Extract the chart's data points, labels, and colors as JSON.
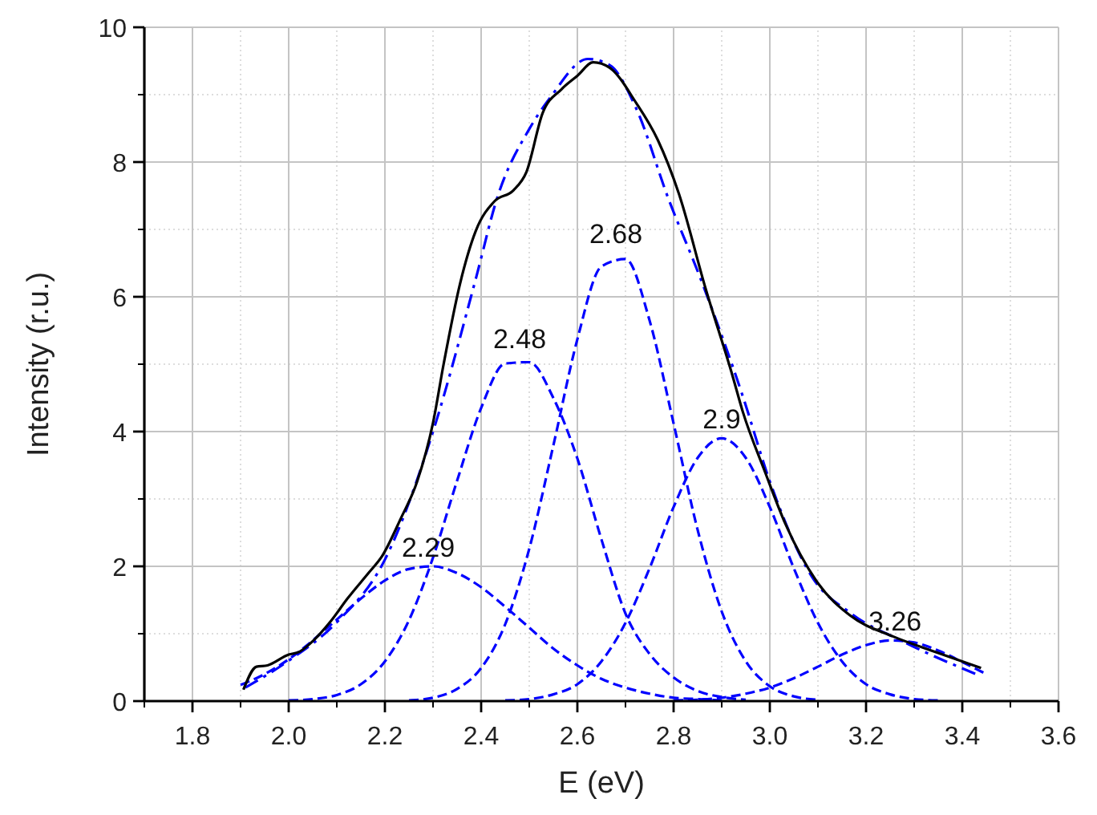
{
  "chart_data": {
    "type": "line",
    "xlabel": "E (eV)",
    "ylabel": "Intensity (r.u.)",
    "xlim": [
      1.7,
      3.6
    ],
    "ylim": [
      0,
      10
    ],
    "xticks": [
      1.8,
      {
        "value": 2,
        "label": "2.0"
      },
      2.2,
      2.4,
      2.6,
      2.8,
      {
        "value": 3,
        "label": "3.0"
      },
      3.2,
      3.4,
      3.6
    ],
    "yticks": [
      0,
      2,
      4,
      6,
      8,
      10
    ],
    "grid": true,
    "marker": "none",
    "series": [
      {
        "color": "#0000ff",
        "line_style": "dashed",
        "x": [
          1.9,
          1.95,
          2.0,
          2.05,
          2.1,
          2.15,
          2.2,
          2.25,
          2.3,
          2.35,
          2.4,
          2.45,
          2.5,
          2.55,
          2.6,
          2.65,
          2.7,
          2.75,
          2.8,
          2.85,
          2.9
        ],
        "values": [
          0.24,
          0.4,
          0.62,
          0.9,
          1.21,
          1.52,
          1.79,
          1.96,
          2.0,
          1.9,
          1.69,
          1.4,
          1.09,
          0.78,
          0.53,
          0.33,
          0.2,
          0.11,
          0.05,
          0.03,
          0.01
        ]
      },
      {
        "color": "#0000ff",
        "line_style": "dashed",
        "x": [
          2.0,
          2.05,
          2.1,
          2.15,
          2.2,
          2.25,
          2.3,
          2.35,
          2.4,
          2.45,
          2.5,
          2.55,
          2.6,
          2.65,
          2.7,
          2.75,
          2.8,
          2.85,
          2.9,
          2.95
        ],
        "values": [
          0.01,
          0.03,
          0.09,
          0.25,
          0.59,
          1.2,
          2.13,
          3.27,
          4.35,
          5.01,
          5.03,
          4.5,
          3.6,
          2.4,
          1.3,
          0.7,
          0.35,
          0.15,
          0.06,
          0.02
        ]
      },
      {
        "color": "#0000ff",
        "line_style": "dashed",
        "x": [
          2.25,
          2.3,
          2.35,
          2.4,
          2.45,
          2.5,
          2.55,
          2.6,
          2.65,
          2.7,
          2.75,
          2.8,
          2.85,
          2.9,
          2.95,
          3.0,
          3.05,
          3.1
        ],
        "values": [
          0.01,
          0.05,
          0.18,
          0.49,
          1.14,
          2.26,
          3.79,
          5.37,
          6.45,
          6.56,
          5.65,
          4.12,
          2.54,
          1.33,
          0.59,
          0.22,
          0.07,
          0.02
        ]
      },
      {
        "color": "#0000ff",
        "line_style": "dashed",
        "x": [
          2.45,
          2.5,
          2.55,
          2.6,
          2.65,
          2.7,
          2.75,
          2.8,
          2.85,
          2.9,
          2.95,
          3.0,
          3.05,
          3.1,
          3.15,
          3.2,
          3.25,
          3.3,
          3.35
        ],
        "values": [
          0.01,
          0.03,
          0.1,
          0.25,
          0.59,
          1.16,
          1.97,
          2.88,
          3.61,
          3.9,
          3.61,
          2.88,
          1.97,
          1.16,
          0.59,
          0.25,
          0.1,
          0.03,
          0.01
        ]
      },
      {
        "color": "#0000ff",
        "line_style": "dashed",
        "x": [
          2.8,
          2.85,
          2.9,
          2.95,
          3.0,
          3.05,
          3.1,
          3.15,
          3.2,
          3.25,
          3.3,
          3.35,
          3.4,
          3.45
        ],
        "values": [
          0.01,
          0.02,
          0.05,
          0.11,
          0.2,
          0.34,
          0.51,
          0.69,
          0.83,
          0.9,
          0.87,
          0.75,
          0.58,
          0.4
        ]
      },
      {
        "color": "#0000ff",
        "line_style": "dashdot",
        "x": [
          1.91,
          2.0,
          2.1,
          2.2,
          2.3,
          2.389,
          2.433,
          2.5,
          2.544,
          2.622,
          2.667,
          2.722,
          2.789,
          2.856,
          2.944,
          3.0,
          3.089,
          3.167,
          3.278,
          3.439
        ],
        "values": [
          0.2,
          0.6,
          1.17,
          2.1,
          4.0,
          6.27,
          7.46,
          8.49,
          8.96,
          9.53,
          9.44,
          8.8,
          7.46,
          6.27,
          4.52,
          3.26,
          1.83,
          1.31,
          0.88,
          0.37
        ]
      },
      {
        "color": "#000000",
        "line_style": "solid",
        "x": [
          1.906,
          1.933,
          1.956,
          2.0,
          2.022,
          2.044,
          2.089,
          2.122,
          2.167,
          2.194,
          2.233,
          2.267,
          2.3,
          2.322,
          2.356,
          2.389,
          2.428,
          2.467,
          2.494,
          2.528,
          2.567,
          2.6,
          2.633,
          2.667,
          2.722,
          2.767,
          2.811,
          2.867,
          2.922,
          2.944,
          2.989,
          3.033,
          3.1,
          3.167,
          3.256,
          3.344,
          3.439
        ],
        "values": [
          0.17,
          0.51,
          0.53,
          0.69,
          0.73,
          0.85,
          1.2,
          1.52,
          1.91,
          2.15,
          2.71,
          3.26,
          4.13,
          5.0,
          6.19,
          6.98,
          7.42,
          7.58,
          7.85,
          8.73,
          9.08,
          9.28,
          9.48,
          9.4,
          8.88,
          8.33,
          7.53,
          6.11,
          4.84,
          4.29,
          3.42,
          2.62,
          1.75,
          1.27,
          0.96,
          0.73,
          0.49
        ]
      }
    ],
    "annotations": [
      {
        "text": "2.29",
        "x": 2.29,
        "y": 2.0
      },
      {
        "text": "2.48",
        "x": 2.48,
        "y": 5.1
      },
      {
        "text": "2.68",
        "x": 2.68,
        "y": 6.65
      },
      {
        "text": "2.9",
        "x": 2.9,
        "y": 3.9
      },
      {
        "text": "3.26",
        "x": 3.26,
        "y": 0.9
      }
    ]
  }
}
